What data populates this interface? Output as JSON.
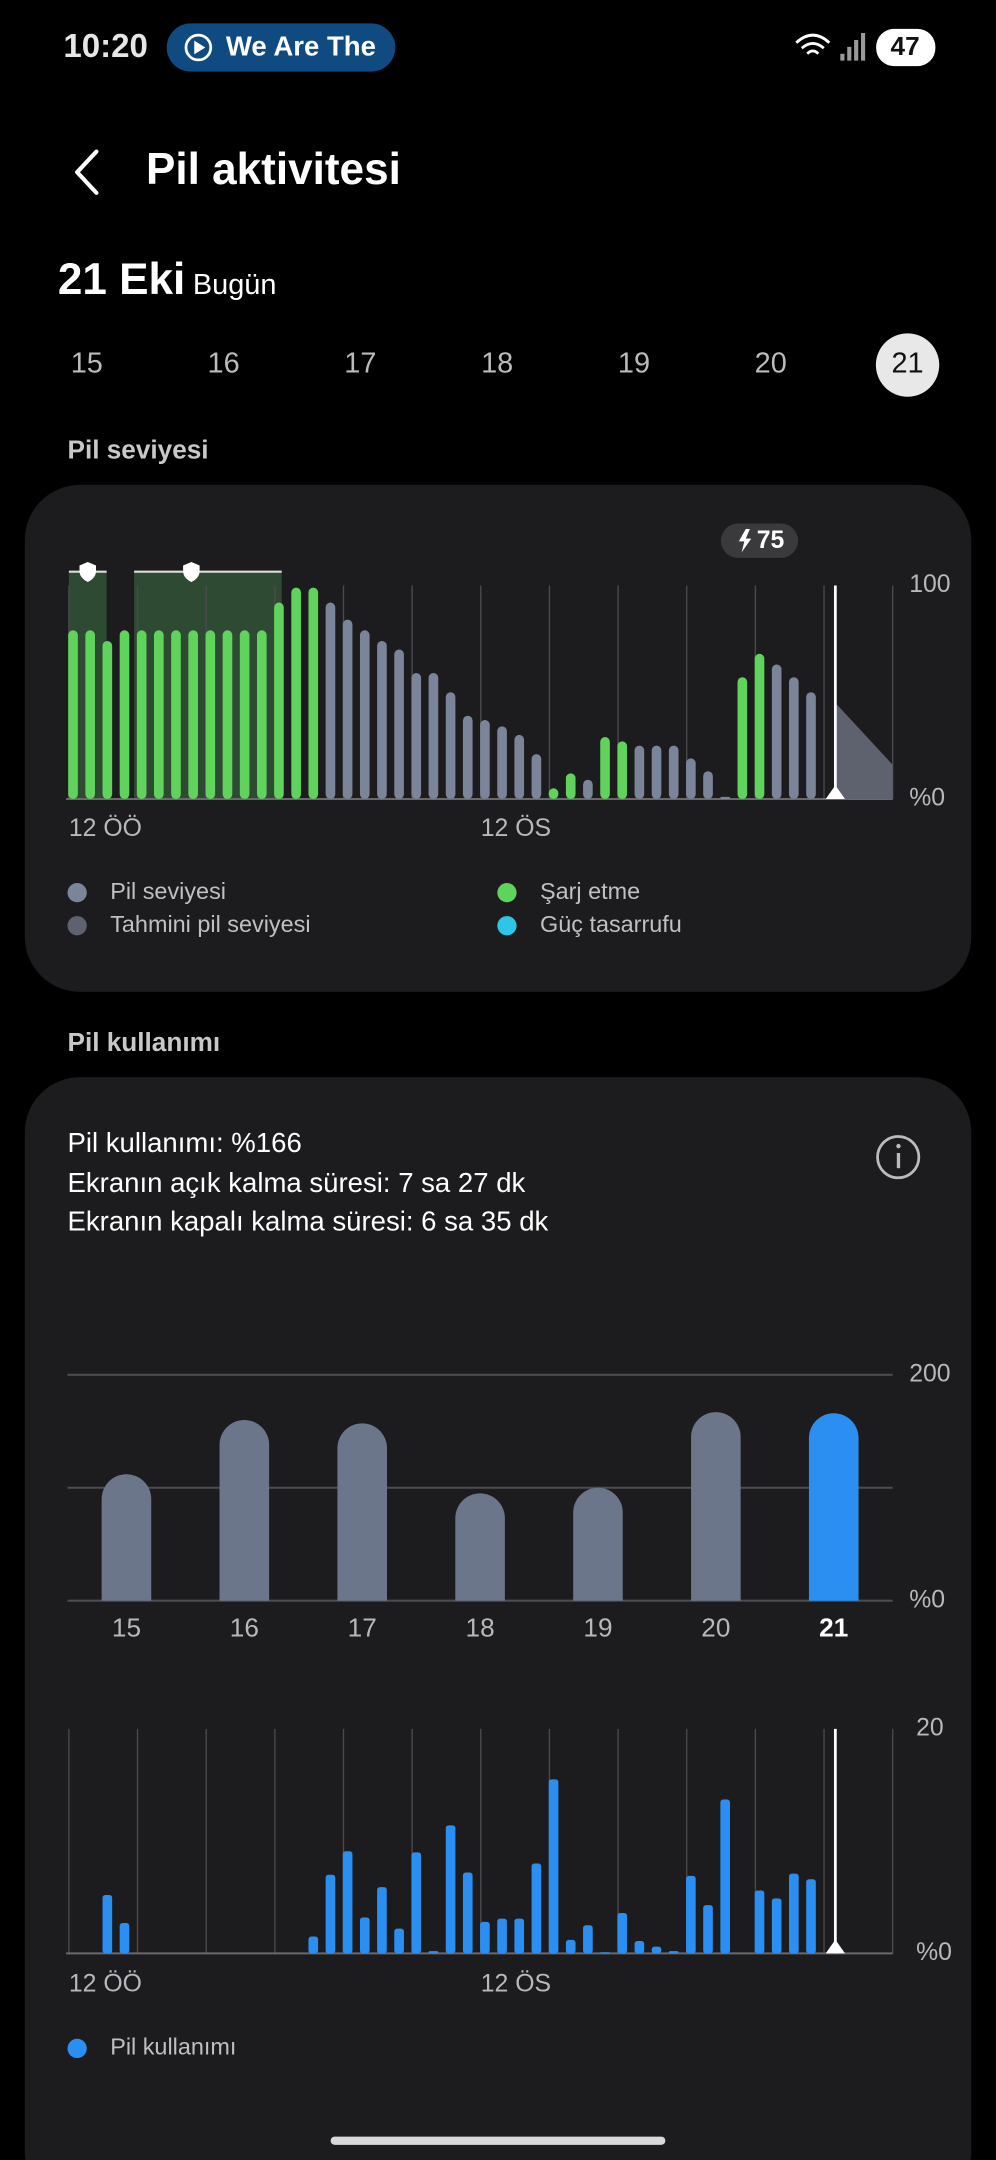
{
  "status_bar": {
    "time": "10:20",
    "media": "We Are The",
    "battery": "47"
  },
  "header": {
    "title": "Pil aktivitesi"
  },
  "date": {
    "day": "21 Eki",
    "label": "Bugün"
  },
  "day_selector": {
    "days": [
      "15",
      "16",
      "17",
      "18",
      "19",
      "20",
      "21"
    ],
    "selected": 6
  },
  "sections": {
    "level": "Pil seviyesi",
    "usage": "Pil kullanımı"
  },
  "usage_summary": [
    "Pil kullanımı: %166",
    "Ekranın açık kalma süresi: 7 sa 27 dk",
    "Ekranın kapalı kalma süresi: 6 sa 35 dk"
  ],
  "chart_data": [
    {
      "type": "bar",
      "x": [
        0,
        0.5,
        1,
        1.5,
        2,
        2.5,
        3,
        3.5,
        4,
        4.5,
        5,
        5.5,
        6,
        6.5,
        7,
        7.5,
        8,
        8.5,
        9,
        9.5,
        10,
        10.5,
        11,
        11.5,
        12,
        12.5,
        13,
        13.5,
        14,
        14.5,
        15,
        15.5,
        16,
        16.5,
        17,
        17.5,
        18,
        18.5,
        19,
        19.5,
        20,
        20.5,
        21,
        21.5
      ],
      "xlim": [
        0,
        24
      ],
      "xticks": [
        {
          "value": 0,
          "label": "12 ÖÖ"
        },
        {
          "value": 12,
          "label": "12 ÖS"
        }
      ],
      "xgrid": [
        0,
        2,
        4,
        6,
        8,
        10,
        12,
        14,
        16,
        18,
        20,
        22,
        24
      ],
      "ylim": [
        0,
        100
      ],
      "yticks": [
        {
          "value": 0,
          "label": "%0"
        },
        100
      ],
      "series": [
        {
          "name": "Pil seviyesi",
          "color": "#7b8599",
          "values": [
            null,
            null,
            null,
            null,
            null,
            null,
            null,
            null,
            null,
            null,
            null,
            null,
            null,
            null,
            null,
            92,
            84,
            79,
            74,
            70,
            59,
            59,
            50,
            39,
            37,
            34,
            30,
            21,
            null,
            null,
            9,
            null,
            null,
            25,
            25,
            25,
            19,
            13,
            1,
            null,
            null,
            63,
            57,
            50
          ]
        },
        {
          "name": "Şarj etme",
          "color": "#5fd35b",
          "values": [
            79,
            79,
            74,
            79,
            79,
            79,
            79,
            79,
            79,
            79,
            79,
            79,
            92,
            99,
            99,
            null,
            null,
            null,
            null,
            null,
            null,
            null,
            null,
            null,
            null,
            null,
            null,
            null,
            5,
            12,
            null,
            29,
            27,
            null,
            null,
            null,
            null,
            null,
            null,
            57,
            68,
            null,
            null,
            null
          ]
        },
        {
          "name": "Tahmini pil seviyesi",
          "color": "#5d626e",
          "x": [
            22.33,
            24
          ],
          "values": [
            45,
            16
          ]
        },
        {
          "name": "Güç tasarrufu",
          "color": "#2ec6e6",
          "ranges": [
            [
              0,
              1.1
            ],
            [
              1.9,
              6.2
            ]
          ]
        }
      ],
      "now": 22.33,
      "annotation": {
        "text": "75",
        "x": 20
      }
    },
    {
      "type": "bar",
      "categories": [
        "15",
        "16",
        "17",
        "18",
        "19",
        "20",
        "21"
      ],
      "values": [
        112,
        160,
        157,
        95,
        100,
        167,
        166
      ],
      "color": "#6b768a",
      "selected": 6,
      "selected_color": "#2b8ff2",
      "ylim": [
        0,
        200
      ],
      "yticks": [
        {
          "value": 0,
          "label": "%0"
        },
        200
      ],
      "gridlines": [
        0,
        100,
        200
      ]
    },
    {
      "type": "bar",
      "x": [
        0,
        0.5,
        1,
        1.5,
        2,
        2.5,
        3,
        3.5,
        4,
        4.5,
        5,
        5.5,
        6,
        6.5,
        7,
        7.5,
        8,
        8.5,
        9,
        9.5,
        10,
        10.5,
        11,
        11.5,
        12,
        12.5,
        13,
        13.5,
        14,
        14.5,
        15,
        15.5,
        16,
        16.5,
        17,
        17.5,
        18,
        18.5,
        19,
        19.5,
        20,
        20.5,
        21,
        21.5
      ],
      "xlim": [
        0,
        24
      ],
      "xticks": [
        {
          "value": 0,
          "label": "12 ÖÖ"
        },
        {
          "value": 12,
          "label": "12 ÖS"
        }
      ],
      "xgrid": [
        0,
        2,
        4,
        6,
        8,
        10,
        12,
        14,
        16,
        18,
        20,
        22,
        24
      ],
      "ylim": [
        0,
        20
      ],
      "yticks": [
        {
          "value": 0,
          "label": "%0"
        },
        20
      ],
      "series": [
        {
          "name": "Pil kullanımı",
          "color": "#2b8ff2",
          "values": [
            0,
            0,
            5.2,
            2.7,
            0,
            0,
            0,
            0,
            0,
            0,
            0,
            0,
            0,
            0,
            1.5,
            7,
            9.1,
            3.2,
            5.9,
            2.2,
            9,
            0.2,
            11.4,
            7.2,
            2.8,
            3.1,
            3.1,
            8,
            15.5,
            1.2,
            2.5,
            0.1,
            3.6,
            1.1,
            0.6,
            0.2,
            6.9,
            4.3,
            13.7,
            0,
            5.6,
            4.9,
            7.1,
            6.6
          ]
        }
      ],
      "now": 22.33
    }
  ]
}
